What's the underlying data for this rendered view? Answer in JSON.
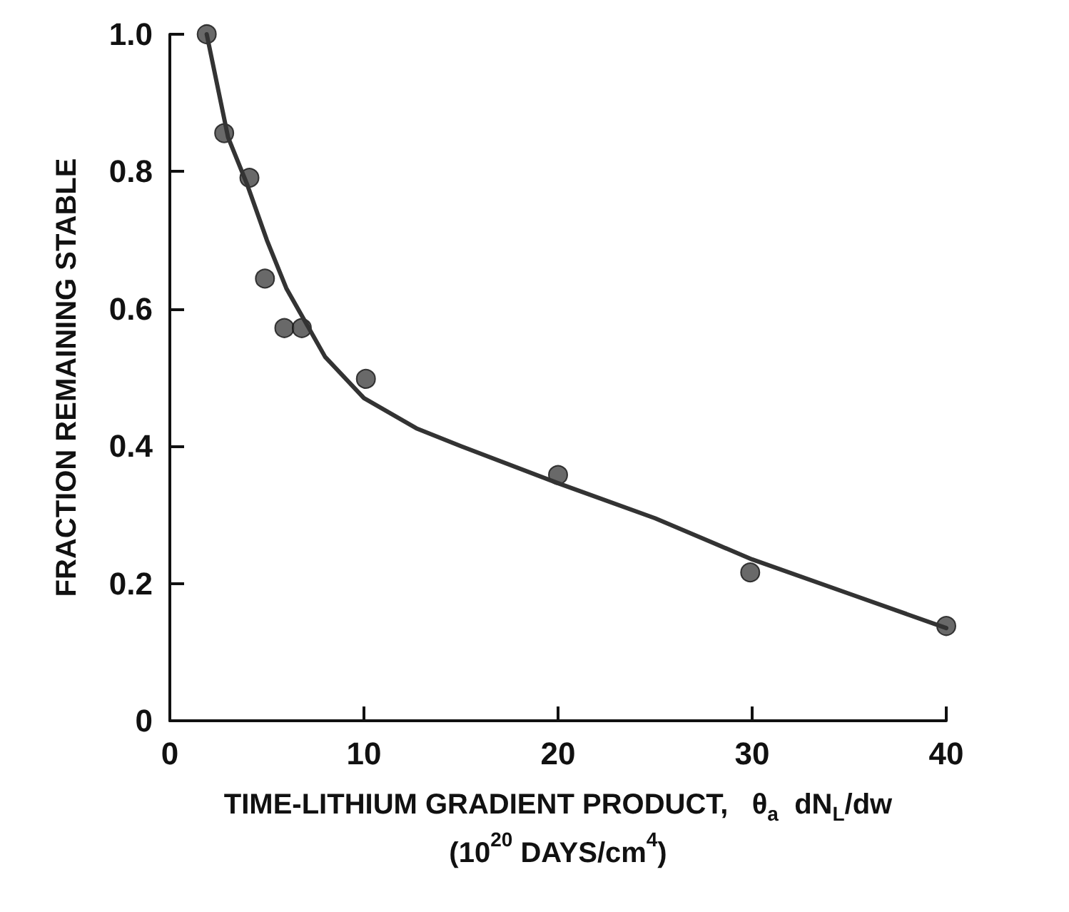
{
  "chart_data": {
    "type": "scatter",
    "xlabel": "TIME-LITHIUM GRADIENT PRODUCT,   θ$_{a}$  dN$_{L}$/dw\n(10$^{20}$ DAYS/cm$^{4}$)",
    "ylabel": "FRACTION REMAINING STABLE",
    "xlim": [
      0,
      40
    ],
    "xticks": [
      0,
      10,
      20,
      30,
      40
    ],
    "ylim": [
      0,
      1
    ],
    "yticks": [
      0,
      0.2,
      0.4,
      0.6,
      0.8,
      {
        "value": 1,
        "label": "1.0"
      }
    ],
    "grid": false,
    "marker": "circle",
    "series": [
      {
        "color": "#444444",
        "x": [
          1.9,
          2.8,
          4.1,
          4.9,
          5.9,
          6.8,
          10.1,
          20,
          29.9,
          40
        ],
        "values": [
          1.0,
          0.856,
          0.791,
          0.644,
          0.572,
          0.572,
          0.498,
          0.358,
          0.216,
          0.138
        ]
      },
      {
        "type": "line",
        "color": "#333333",
        "marker": "none",
        "line_style": "solid",
        "x": [
          1.9,
          3,
          4,
          5,
          6,
          7,
          8,
          10,
          12.7,
          15,
          20,
          25,
          30,
          35,
          40
        ],
        "values": [
          1.0,
          0.85,
          0.78,
          0.7,
          0.63,
          0.58,
          0.53,
          0.47,
          0.426,
          0.4,
          0.346,
          0.295,
          0.235,
          0.185,
          0.135
        ]
      }
    ]
  }
}
